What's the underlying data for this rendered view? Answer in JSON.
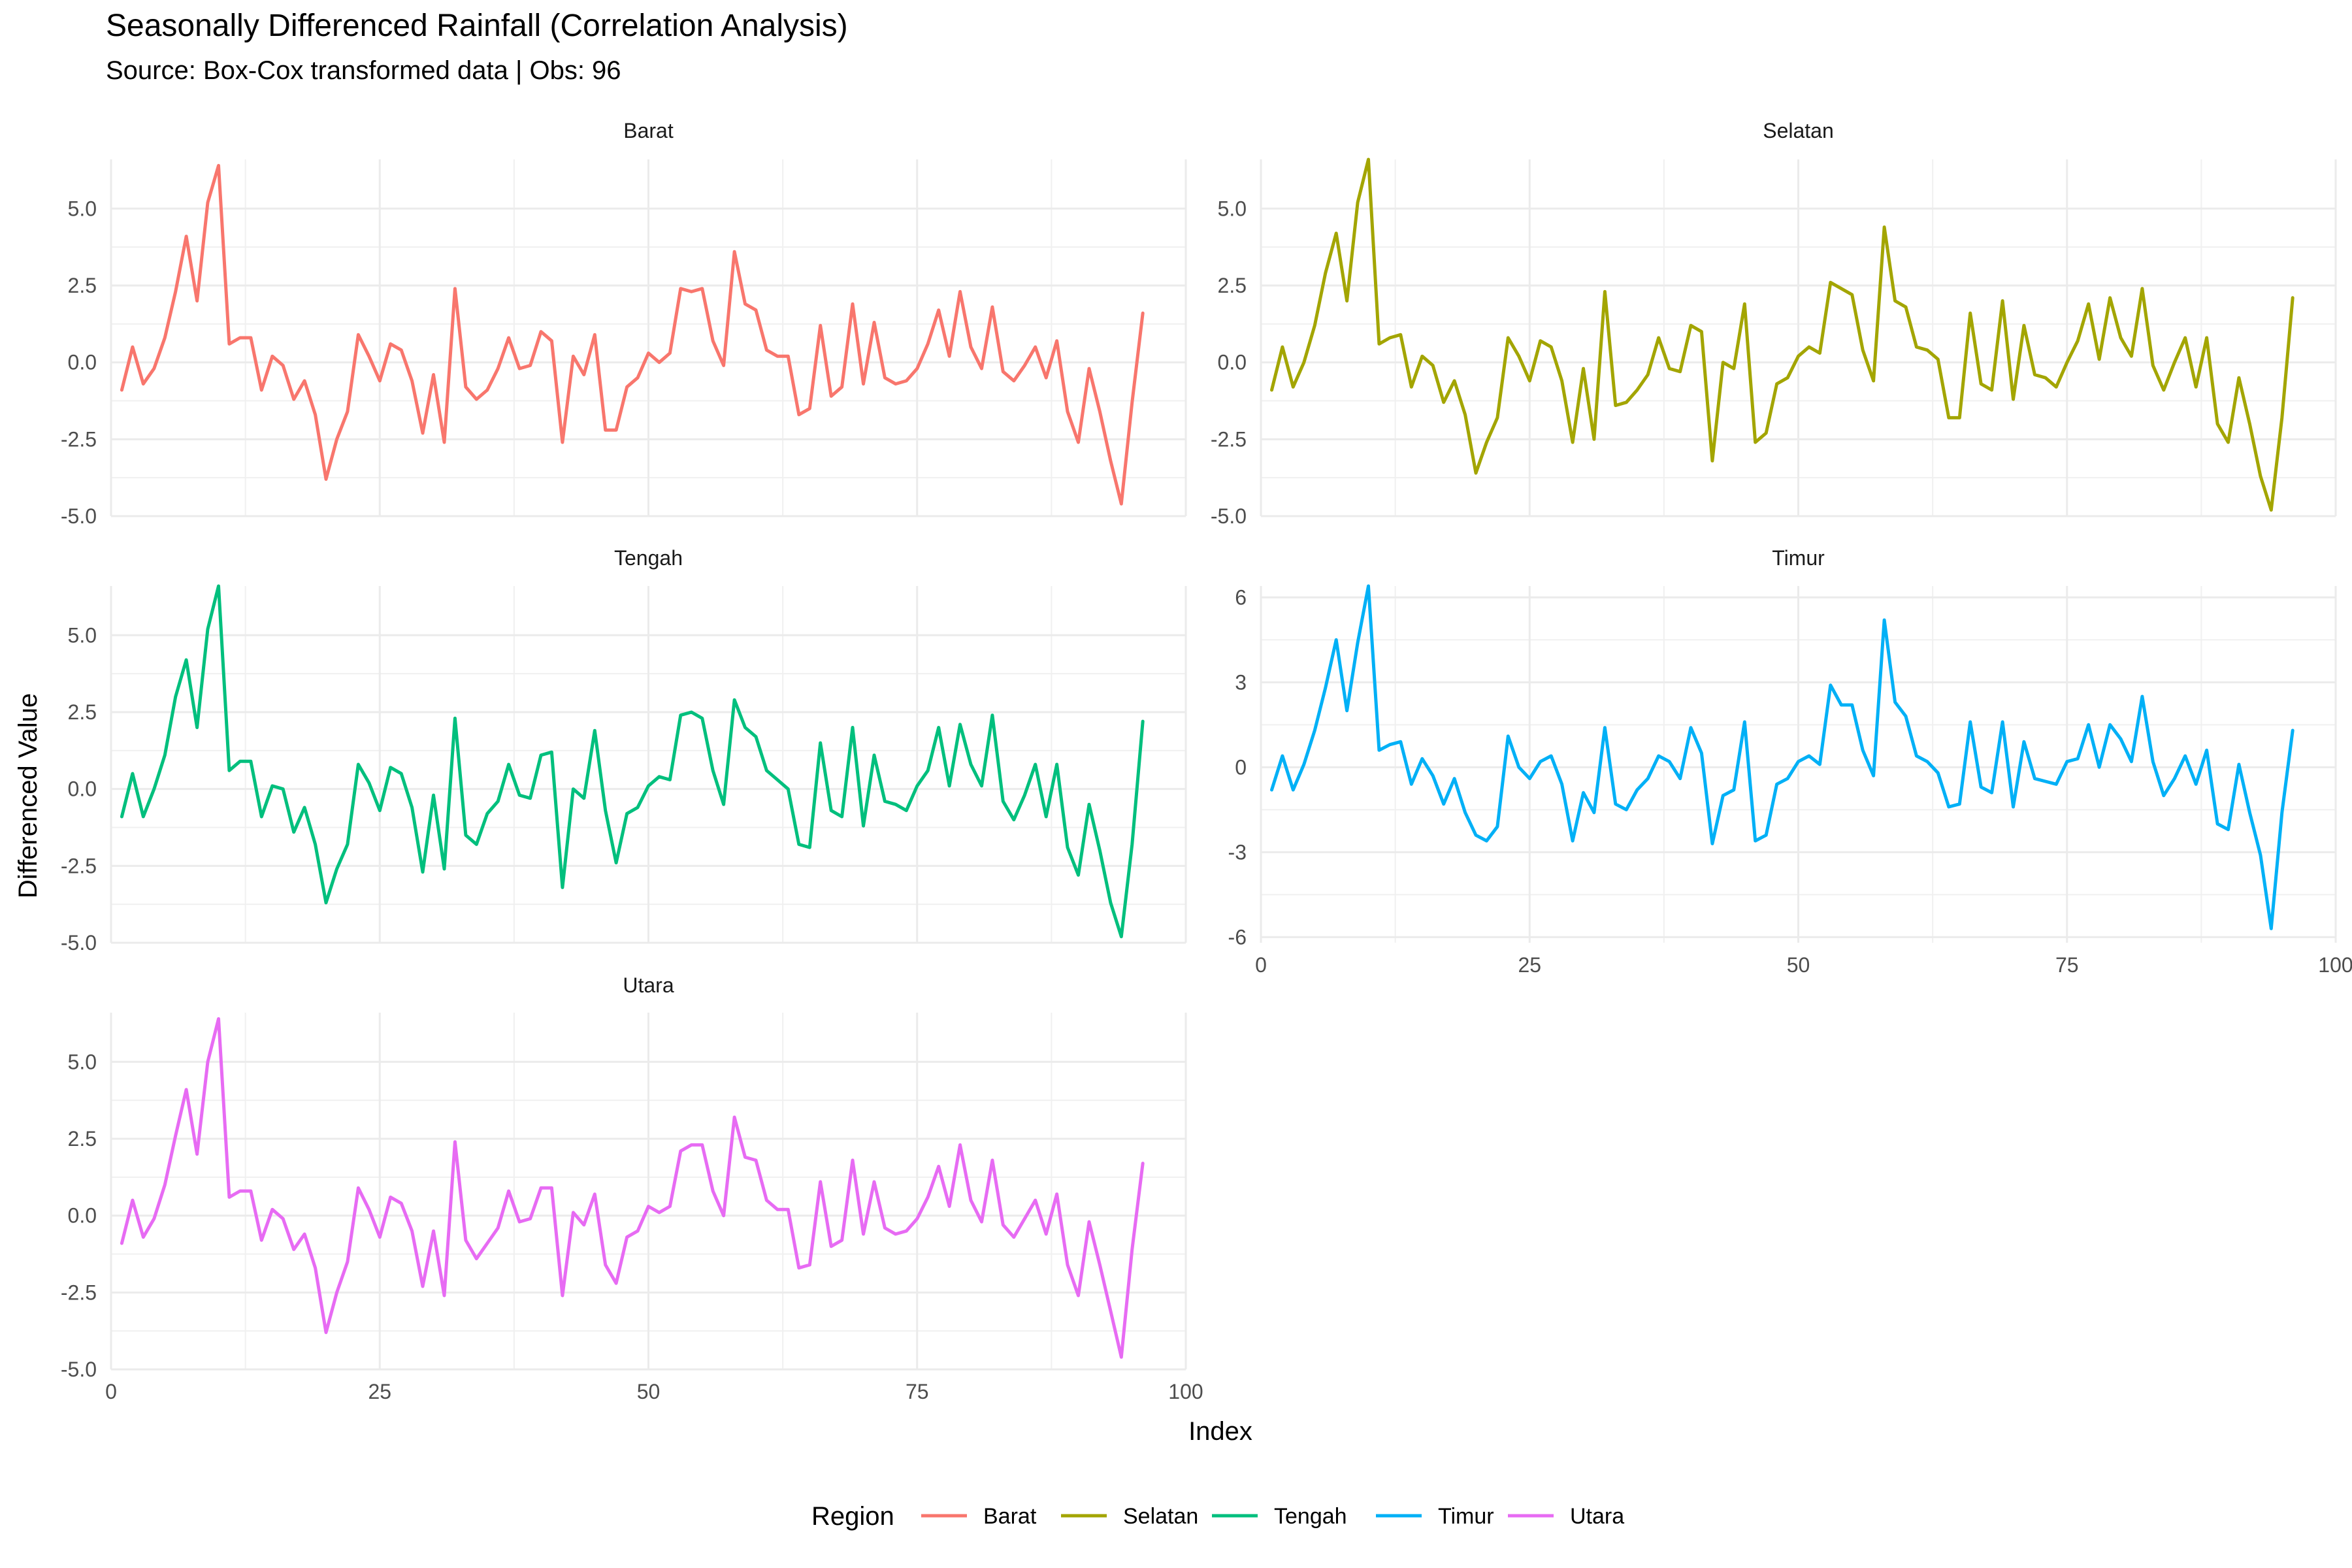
{
  "chart_data": {
    "type": "line",
    "title": "Seasonally Differenced Rainfall (Correlation Analysis)",
    "subtitle": "Source: Box-Cox transformed data | Obs: 96",
    "xlabel": "Index",
    "ylabel": "Differenced Value",
    "xlim": [
      0,
      100
    ],
    "x_ticks": [
      0,
      25,
      50,
      75,
      100
    ],
    "x_start": 1,
    "grid": true,
    "legend": {
      "title": "Region",
      "placement": "bottom",
      "entries": [
        "Barat",
        "Selatan",
        "Tengah",
        "Timur",
        "Utara"
      ]
    },
    "colors": {
      "Barat": "#F8766D",
      "Selatan": "#A3A500",
      "Tengah": "#00BF7D",
      "Timur": "#00B0F6",
      "Utara": "#E76BF3"
    },
    "facets": [
      {
        "name": "Barat",
        "ylim": [
          -5,
          6.6
        ],
        "y_ticks": [
          -5,
          -2.5,
          0,
          2.5,
          5
        ],
        "y_tick_labels": [
          "-5.0",
          "-2.5",
          "0.0",
          "2.5",
          "5.0"
        ],
        "values": [
          -0.9,
          0.5,
          -0.7,
          -0.2,
          0.8,
          2.3,
          4.1,
          2.0,
          5.2,
          6.4,
          0.6,
          0.8,
          0.8,
          -0.9,
          0.2,
          -0.1,
          -1.2,
          -0.6,
          -1.7,
          -3.8,
          -2.5,
          -1.6,
          0.9,
          0.2,
          -0.6,
          0.6,
          0.4,
          -0.6,
          -2.3,
          -0.4,
          -2.6,
          2.4,
          -0.8,
          -1.2,
          -0.9,
          -0.2,
          0.8,
          -0.2,
          -0.1,
          1.0,
          0.7,
          -2.6,
          0.2,
          -0.4,
          0.9,
          -2.2,
          -2.2,
          -0.8,
          -0.5,
          0.3,
          0.0,
          0.3,
          2.4,
          2.3,
          2.4,
          0.7,
          -0.1,
          3.6,
          1.9,
          1.7,
          0.4,
          0.2,
          0.2,
          -1.7,
          -1.5,
          1.2,
          -1.1,
          -0.8,
          1.9,
          -0.7,
          1.3,
          -0.5,
          -0.7,
          -0.6,
          -0.2,
          0.6,
          1.7,
          0.2,
          2.3,
          0.5,
          -0.2,
          1.8,
          -0.3,
          -0.6,
          -0.1,
          0.5,
          -0.5,
          0.7,
          -1.6,
          -2.6,
          -0.2,
          -1.6,
          -3.2,
          -4.6,
          -1.3,
          1.6
        ]
      },
      {
        "name": "Selatan",
        "ylim": [
          -5.0,
          6.6
        ],
        "y_ticks": [
          -5,
          -2.5,
          0,
          2.5,
          5
        ],
        "y_tick_labels": [
          "-5.0",
          "-2.5",
          "0.0",
          "2.5",
          "5.0"
        ],
        "values": [
          -0.9,
          0.5,
          -0.8,
          0.0,
          1.2,
          2.9,
          4.2,
          2.0,
          5.2,
          6.6,
          0.6,
          0.8,
          0.9,
          -0.8,
          0.2,
          -0.1,
          -1.3,
          -0.6,
          -1.7,
          -3.6,
          -2.6,
          -1.8,
          0.8,
          0.2,
          -0.6,
          0.7,
          0.5,
          -0.6,
          -2.6,
          -0.2,
          -2.5,
          2.3,
          -1.4,
          -1.3,
          -0.9,
          -0.4,
          0.8,
          -0.2,
          -0.3,
          1.2,
          1.0,
          -3.2,
          0.0,
          -0.2,
          1.9,
          -2.6,
          -2.3,
          -0.7,
          -0.5,
          0.2,
          0.5,
          0.3,
          2.6,
          2.4,
          2.2,
          0.4,
          -0.6,
          4.4,
          2.0,
          1.8,
          0.5,
          0.4,
          0.1,
          -1.8,
          -1.8,
          1.6,
          -0.7,
          -0.9,
          2.0,
          -1.2,
          1.2,
          -0.4,
          -0.5,
          -0.8,
          0.0,
          0.7,
          1.9,
          0.1,
          2.1,
          0.8,
          0.2,
          2.4,
          -0.1,
          -0.9,
          0.0,
          0.8,
          -0.8,
          0.8,
          -2.0,
          -2.6,
          -0.5,
          -2.0,
          -3.7,
          -4.8,
          -1.8,
          2.1
        ]
      },
      {
        "name": "Tengah",
        "ylim": [
          -5,
          6.6
        ],
        "y_ticks": [
          -5,
          -2.5,
          0,
          2.5,
          5
        ],
        "y_tick_labels": [
          "-5.0",
          "-2.5",
          "0.0",
          "2.5",
          "5.0"
        ],
        "values": [
          -0.9,
          0.5,
          -0.9,
          0.0,
          1.1,
          3.0,
          4.2,
          2.0,
          5.2,
          6.6,
          0.6,
          0.9,
          0.9,
          -0.9,
          0.1,
          0.0,
          -1.4,
          -0.6,
          -1.8,
          -3.7,
          -2.6,
          -1.8,
          0.8,
          0.2,
          -0.7,
          0.7,
          0.5,
          -0.6,
          -2.7,
          -0.2,
          -2.6,
          2.3,
          -1.5,
          -1.8,
          -0.8,
          -0.4,
          0.8,
          -0.2,
          -0.3,
          1.1,
          1.2,
          -3.2,
          0.0,
          -0.3,
          1.9,
          -0.7,
          -2.4,
          -0.8,
          -0.6,
          0.1,
          0.4,
          0.3,
          2.4,
          2.5,
          2.3,
          0.6,
          -0.5,
          2.9,
          2.0,
          1.7,
          0.6,
          0.3,
          0.0,
          -1.8,
          -1.9,
          1.5,
          -0.7,
          -0.9,
          2.0,
          -1.2,
          1.1,
          -0.4,
          -0.5,
          -0.7,
          0.1,
          0.6,
          2.0,
          0.1,
          2.1,
          0.8,
          0.1,
          2.4,
          -0.4,
          -1.0,
          -0.2,
          0.8,
          -0.9,
          0.8,
          -1.9,
          -2.8,
          -0.5,
          -2.0,
          -3.7,
          -4.8,
          -1.8,
          2.2
        ]
      },
      {
        "name": "Timur",
        "ylim": [
          -6.2,
          6.4
        ],
        "y_ticks": [
          -6,
          -3,
          0,
          3,
          6
        ],
        "y_tick_labels": [
          "-6",
          "-3",
          "0",
          "3",
          "6"
        ],
        "values": [
          -0.8,
          0.4,
          -0.8,
          0.1,
          1.3,
          2.8,
          4.5,
          2.0,
          4.4,
          6.4,
          0.6,
          0.8,
          0.9,
          -0.6,
          0.3,
          -0.3,
          -1.3,
          -0.4,
          -1.6,
          -2.4,
          -2.6,
          -2.1,
          1.1,
          0.0,
          -0.4,
          0.2,
          0.4,
          -0.6,
          -2.6,
          -0.9,
          -1.6,
          1.4,
          -1.3,
          -1.5,
          -0.8,
          -0.4,
          0.4,
          0.2,
          -0.4,
          1.4,
          0.5,
          -2.7,
          -1.0,
          -0.8,
          1.6,
          -2.6,
          -2.4,
          -0.6,
          -0.4,
          0.2,
          0.4,
          0.1,
          2.9,
          2.2,
          2.2,
          0.6,
          -0.3,
          5.2,
          2.3,
          1.8,
          0.4,
          0.2,
          -0.2,
          -1.4,
          -1.3,
          1.6,
          -0.7,
          -0.9,
          1.6,
          -1.4,
          0.9,
          -0.4,
          -0.5,
          -0.6,
          0.2,
          0.3,
          1.5,
          0.0,
          1.5,
          1.0,
          0.2,
          2.5,
          0.2,
          -1.0,
          -0.4,
          0.4,
          -0.6,
          0.6,
          -2.0,
          -2.2,
          0.1,
          -1.6,
          -3.1,
          -5.7,
          -1.6,
          1.3
        ]
      },
      {
        "name": "Utara",
        "ylim": [
          -5,
          6.6
        ],
        "y_ticks": [
          -5,
          -2.5,
          0,
          2.5,
          5
        ],
        "y_tick_labels": [
          "-5.0",
          "-2.5",
          "0.0",
          "2.5",
          "5.0"
        ],
        "values": [
          -0.9,
          0.5,
          -0.7,
          -0.1,
          1.0,
          2.6,
          4.1,
          2.0,
          5.0,
          6.4,
          0.6,
          0.8,
          0.8,
          -0.8,
          0.2,
          -0.1,
          -1.1,
          -0.6,
          -1.7,
          -3.8,
          -2.5,
          -1.5,
          0.9,
          0.2,
          -0.7,
          0.6,
          0.4,
          -0.5,
          -2.3,
          -0.5,
          -2.6,
          2.4,
          -0.8,
          -1.4,
          -0.9,
          -0.4,
          0.8,
          -0.2,
          -0.1,
          0.9,
          0.9,
          -2.6,
          0.1,
          -0.3,
          0.7,
          -1.6,
          -2.2,
          -0.7,
          -0.5,
          0.3,
          0.1,
          0.3,
          2.1,
          2.3,
          2.3,
          0.8,
          0.0,
          3.2,
          1.9,
          1.8,
          0.5,
          0.2,
          0.2,
          -1.7,
          -1.6,
          1.1,
          -1.0,
          -0.8,
          1.8,
          -0.6,
          1.1,
          -0.4,
          -0.6,
          -0.5,
          -0.1,
          0.6,
          1.6,
          0.3,
          2.3,
          0.5,
          -0.2,
          1.8,
          -0.3,
          -0.7,
          -0.1,
          0.5,
          -0.6,
          0.7,
          -1.6,
          -2.6,
          -0.2,
          -1.6,
          -3.1,
          -4.6,
          -1.1,
          1.7
        ]
      }
    ]
  }
}
